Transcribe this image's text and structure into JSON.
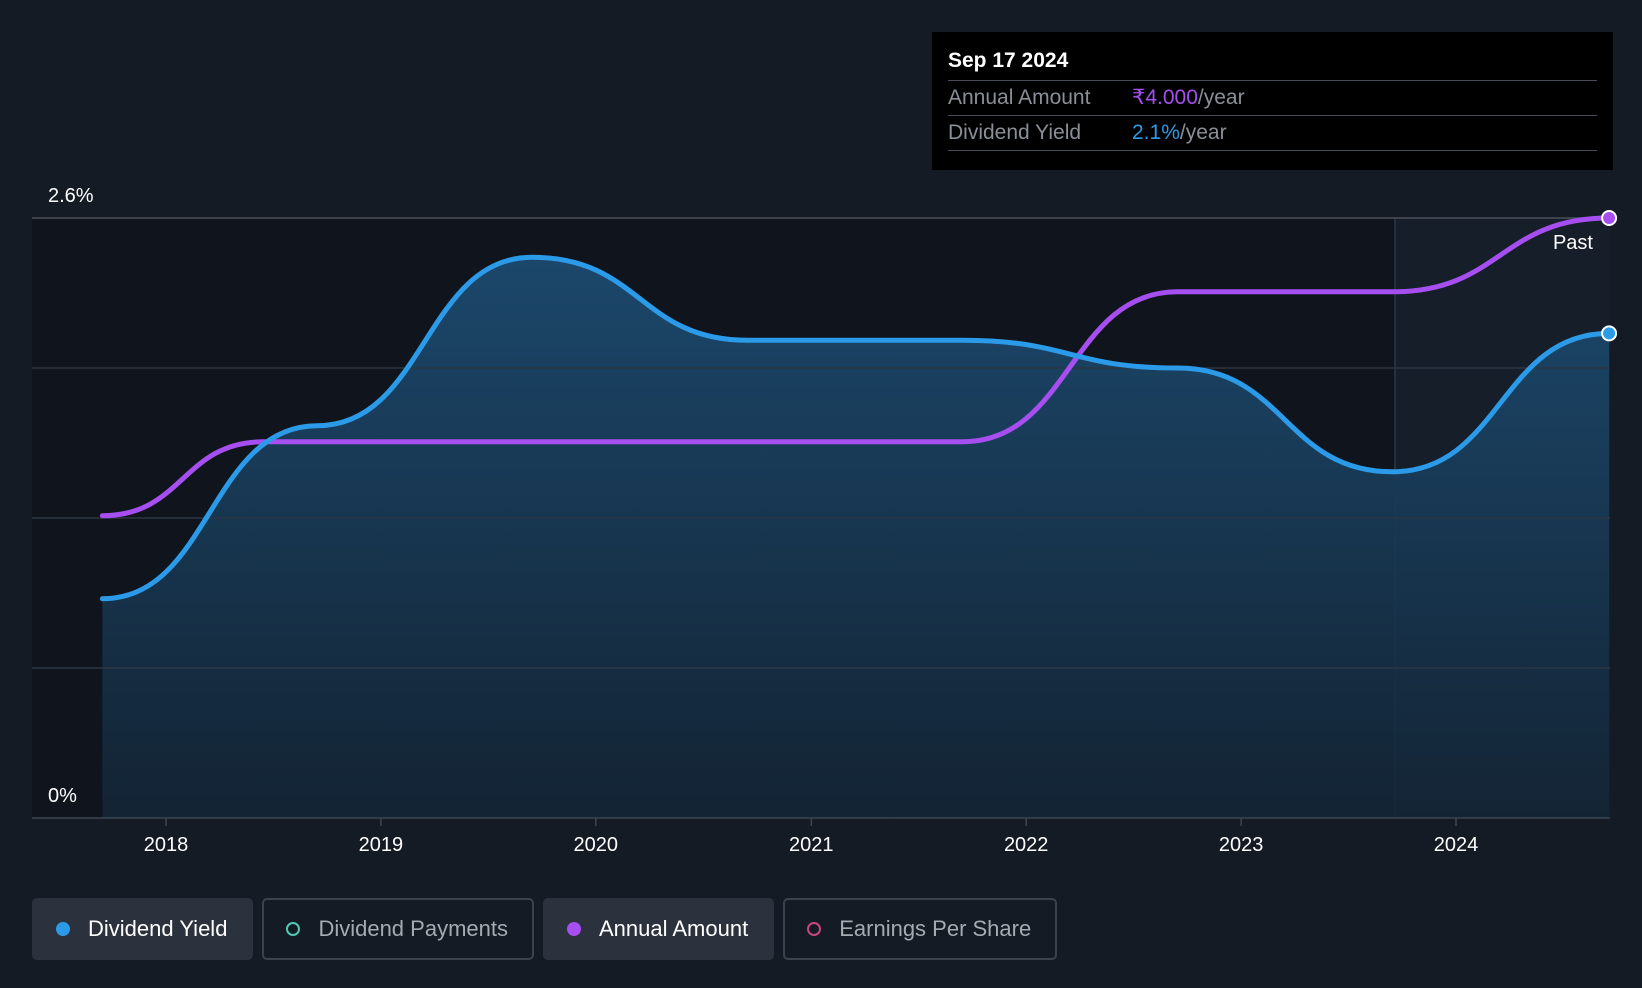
{
  "tooltip": {
    "date": "Sep 17 2024",
    "annual_amount_label": "Annual Amount",
    "annual_amount_value": "₹4.000",
    "dividend_yield_label": "Dividend Yield",
    "dividend_yield_value": "2.1%",
    "unit": "/year"
  },
  "legend": [
    {
      "label": "Dividend Yield",
      "color": "#2b9be9",
      "active": true
    },
    {
      "label": "Dividend Payments",
      "color": "#4fc9b5",
      "active": false
    },
    {
      "label": "Annual Amount",
      "color": "#a64ef0",
      "active": true
    },
    {
      "label": "Earnings Per Share",
      "color": "#c8467c",
      "active": false
    }
  ],
  "past_label": "Past",
  "chart_data": {
    "type": "area",
    "ylim": [
      0,
      2.6
    ],
    "y_ticks": [
      "0%",
      "2.6%"
    ],
    "x_ticks": [
      "2018",
      "2019",
      "2020",
      "2021",
      "2022",
      "2023",
      "2024"
    ],
    "grid": true,
    "series": [
      {
        "name": "Dividend Yield",
        "color": "#2b9be9",
        "x": [
          "2017-09-15",
          "2018-09-15",
          "2019-09-15",
          "2020-09-15",
          "2021-09-15",
          "2022-09-15",
          "2023-09-15",
          "2024-09-17"
        ],
        "values": [
          0.95,
          1.7,
          2.43,
          2.07,
          2.07,
          1.95,
          1.5,
          2.1
        ]
      },
      {
        "name": "Annual Amount",
        "color": "#a64ef0",
        "x": [
          "2017-09-15",
          "2018-06-15",
          "2021-09-15",
          "2022-09-15",
          "2023-09-15",
          "2024-09-17"
        ],
        "values": [
          1.31,
          1.63,
          1.63,
          2.28,
          2.28,
          2.6
        ]
      }
    ]
  }
}
